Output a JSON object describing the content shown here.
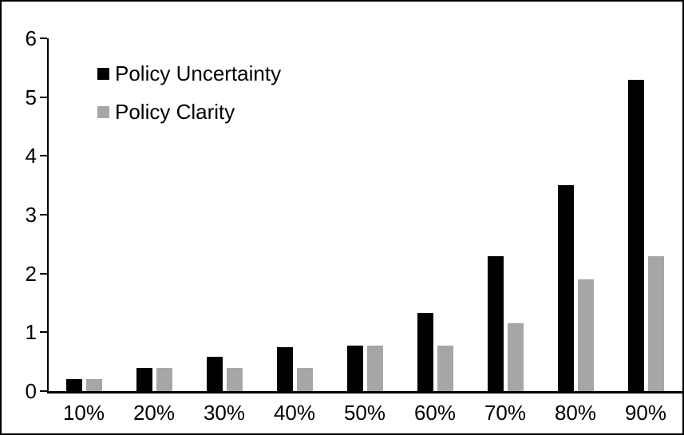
{
  "chart_data": {
    "type": "bar",
    "title": "",
    "xlabel": "",
    "ylabel": "",
    "categories": [
      "10%",
      "20%",
      "30%",
      "40%",
      "50%",
      "60%",
      "70%",
      "80%",
      "90%"
    ],
    "series": [
      {
        "name": "Policy Uncertainty",
        "color": "#000000",
        "values": [
          0.2,
          0.39,
          0.58,
          0.75,
          0.77,
          1.33,
          2.3,
          3.5,
          5.3
        ]
      },
      {
        "name": "Policy Clarity",
        "color": "#A6A6A6",
        "values": [
          0.2,
          0.39,
          0.39,
          0.39,
          0.77,
          0.77,
          1.15,
          1.9,
          2.3
        ]
      }
    ],
    "ylim": [
      0,
      6
    ],
    "y_ticks": [
      6,
      5,
      4,
      3,
      2,
      1,
      0
    ],
    "grid": false,
    "legend_position": "top-left",
    "background": "#ffffff",
    "frame_color": "#000000"
  }
}
